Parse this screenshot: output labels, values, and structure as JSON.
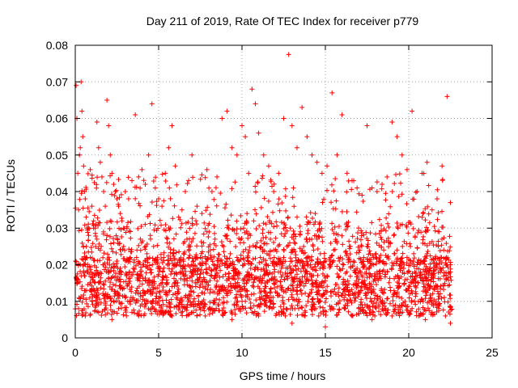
{
  "chart_data": {
    "type": "scatter",
    "title": "Day 211 of 2019, Rate Of TEC Index for receiver p779",
    "xlabel": "GPS time / hours",
    "ylabel": "ROTI / TECUs",
    "xlim": [
      0,
      25
    ],
    "ylim": [
      0,
      0.08
    ],
    "x_ticks": [
      "0",
      "5",
      "10",
      "15",
      "20",
      "25"
    ],
    "y_ticks": [
      "0",
      "0.01",
      "0.02",
      "0.03",
      "0.04",
      "0.05",
      "0.06",
      "0.07",
      "0.08"
    ],
    "grid": true,
    "marker": "+",
    "series_color": "#ff0000",
    "series": [
      {
        "x": [
          0.05,
          0.1,
          0.15,
          0.2,
          0.25,
          0.3,
          0.35,
          0.4,
          0.45,
          0.5,
          0.55,
          0.6,
          0.65,
          0.7,
          0.8,
          0.9,
          1.0,
          1.1,
          1.2,
          1.3,
          1.4,
          1.5,
          1.6,
          1.7,
          1.8,
          1.9,
          2.0,
          2.1,
          2.2,
          2.3,
          2.4,
          2.5,
          2.6,
          2.7,
          2.8,
          2.9,
          3.0,
          3.2,
          3.4,
          3.6,
          3.8,
          4.0,
          4.2,
          4.4,
          4.6,
          4.8,
          5.0,
          5.2,
          5.4,
          5.6,
          5.8,
          6.0,
          6.2,
          6.4,
          6.6,
          6.8,
          7.0,
          7.3,
          7.6,
          7.9,
          8.2,
          8.5,
          8.8,
          9.1,
          9.4,
          9.7,
          10.0,
          10.2,
          10.4,
          10.6,
          10.8,
          11.0,
          11.3,
          11.6,
          11.9,
          12.2,
          12.5,
          12.8,
          13.0,
          13.3,
          13.6,
          13.9,
          14.2,
          14.5,
          14.8,
          15.1,
          15.4,
          15.7,
          16.0,
          16.3,
          16.6,
          16.9,
          17.2,
          17.5,
          17.8,
          18.1,
          18.4,
          18.7,
          19.0,
          19.3,
          19.6,
          19.9,
          20.2,
          20.5,
          20.8,
          21.1,
          21.4,
          21.7,
          22.0,
          22.3,
          22.5
        ],
        "y": [
          0.069,
          0.06,
          0.045,
          0.035,
          0.05,
          0.052,
          0.07,
          0.062,
          0.055,
          0.047,
          0.04,
          0.038,
          0.033,
          0.03,
          0.028,
          0.046,
          0.036,
          0.032,
          0.03,
          0.059,
          0.052,
          0.048,
          0.044,
          0.04,
          0.036,
          0.065,
          0.058,
          0.05,
          0.045,
          0.042,
          0.04,
          0.038,
          0.036,
          0.034,
          0.032,
          0.03,
          0.04,
          0.038,
          0.043,
          0.061,
          0.044,
          0.046,
          0.042,
          0.05,
          0.064,
          0.041,
          0.038,
          0.036,
          0.045,
          0.052,
          0.058,
          0.047,
          0.033,
          0.035,
          0.04,
          0.043,
          0.05,
          0.036,
          0.034,
          0.046,
          0.04,
          0.044,
          0.06,
          0.062,
          0.052,
          0.05,
          0.058,
          0.055,
          0.045,
          0.068,
          0.064,
          0.056,
          0.05,
          0.047,
          0.04,
          0.045,
          0.06,
          0.0775,
          0.058,
          0.052,
          0.063,
          0.055,
          0.05,
          0.048,
          0.045,
          0.047,
          0.067,
          0.05,
          0.061,
          0.045,
          0.043,
          0.041,
          0.039,
          0.058,
          0.041,
          0.04,
          0.042,
          0.044,
          0.059,
          0.055,
          0.05,
          0.046,
          0.062,
          0.04,
          0.045,
          0.048,
          0.035,
          0.038,
          0.047,
          0.066,
          0.037
        ]
      },
      {
        "x": [
          0.1,
          0.3,
          0.5,
          0.7,
          0.9,
          1.1,
          1.3,
          1.5,
          1.7,
          1.9,
          2.1,
          2.3,
          2.5,
          2.7,
          2.9,
          3.1,
          3.3,
          3.5,
          3.7,
          3.9,
          4.1,
          4.3,
          4.5,
          4.7,
          4.9,
          5.1,
          5.3,
          5.5,
          5.7,
          5.9,
          6.1,
          6.3,
          6.5,
          6.7,
          6.9,
          7.1,
          7.3,
          7.5,
          7.7,
          7.9,
          8.1,
          8.3,
          8.5,
          8.7,
          8.9,
          9.1,
          9.3,
          9.5,
          9.7,
          9.9,
          10.1,
          10.3,
          10.5,
          10.7,
          10.9,
          11.1,
          11.3,
          11.5,
          11.7,
          11.9,
          12.1,
          12.3,
          12.5,
          12.7,
          12.9,
          13.1,
          13.3,
          13.5,
          13.7,
          13.9,
          14.1,
          14.3,
          14.5,
          14.7,
          14.9,
          15.1,
          15.3,
          15.5,
          15.7,
          15.9,
          16.1,
          16.3,
          16.5,
          16.7,
          16.9,
          17.1,
          17.3,
          17.5,
          17.7,
          17.9,
          18.1,
          18.3,
          18.5,
          18.7,
          18.9,
          19.1,
          19.3,
          19.5,
          19.7,
          19.9,
          20.1,
          20.3,
          20.5,
          20.7,
          20.9,
          21.1,
          21.3,
          21.5,
          21.7,
          21.9,
          22.1,
          22.3,
          22.5
        ],
        "y": [
          0.015,
          0.02,
          0.025,
          0.018,
          0.022,
          0.03,
          0.027,
          0.024,
          0.02,
          0.028,
          0.032,
          0.026,
          0.021,
          0.019,
          0.025,
          0.03,
          0.022,
          0.018,
          0.024,
          0.027,
          0.02,
          0.023,
          0.028,
          0.025,
          0.021,
          0.019,
          0.022,
          0.026,
          0.03,
          0.024,
          0.02,
          0.018,
          0.023,
          0.027,
          0.025,
          0.021,
          0.019,
          0.022,
          0.026,
          0.029,
          0.024,
          0.02,
          0.017,
          0.021,
          0.025,
          0.028,
          0.023,
          0.019,
          0.022,
          0.026,
          0.03,
          0.034,
          0.028,
          0.032,
          0.026,
          0.022,
          0.019,
          0.023,
          0.027,
          0.024,
          0.02,
          0.018,
          0.022,
          0.025,
          0.03,
          0.027,
          0.033,
          0.029,
          0.025,
          0.022,
          0.02,
          0.024,
          0.027,
          0.023,
          0.019,
          0.017,
          0.021,
          0.024,
          0.026,
          0.022,
          0.02,
          0.023,
          0.025,
          0.021,
          0.019,
          0.018,
          0.022,
          0.025,
          0.023,
          0.02,
          0.018,
          0.021,
          0.024,
          0.022,
          0.026,
          0.028,
          0.024,
          0.021,
          0.019,
          0.022,
          0.025,
          0.023,
          0.02,
          0.018,
          0.021,
          0.023,
          0.019,
          0.017,
          0.02,
          0.022,
          0.024,
          0.02,
          0.018
        ]
      },
      {
        "x": [
          0.2,
          0.6,
          1.0,
          1.4,
          1.8,
          2.2,
          2.6,
          3.0,
          3.4,
          3.8,
          4.2,
          4.6,
          5.0,
          5.4,
          5.8,
          6.2,
          6.6,
          7.0,
          7.4,
          7.8,
          8.2,
          8.6,
          9.0,
          9.4,
          9.8,
          10.2,
          10.6,
          11.0,
          11.4,
          11.8,
          12.2,
          12.6,
          13.0,
          13.4,
          13.8,
          14.2,
          14.6,
          15.0,
          15.4,
          15.8,
          16.2,
          16.6,
          17.0,
          17.4,
          17.8,
          18.2,
          18.6,
          19.0,
          19.4,
          19.8,
          20.2,
          20.6,
          21.0,
          21.4,
          21.8,
          22.2,
          22.5
        ],
        "y": [
          0.008,
          0.006,
          0.01,
          0.007,
          0.009,
          0.005,
          0.008,
          0.011,
          0.007,
          0.006,
          0.009,
          0.008,
          0.01,
          0.007,
          0.006,
          0.009,
          0.008,
          0.007,
          0.01,
          0.006,
          0.008,
          0.009,
          0.007,
          0.005,
          0.008,
          0.01,
          0.007,
          0.006,
          0.009,
          0.008,
          0.007,
          0.006,
          0.004,
          0.008,
          0.007,
          0.009,
          0.006,
          0.003,
          0.008,
          0.007,
          0.009,
          0.006,
          0.008,
          0.007,
          0.005,
          0.009,
          0.008,
          0.006,
          0.007,
          0.009,
          0.008,
          0.006,
          0.005,
          0.007,
          0.008,
          0.006,
          0.004
        ]
      }
    ]
  }
}
